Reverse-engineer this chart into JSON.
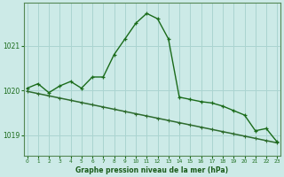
{
  "title": "Graphe pression niveau de la mer (hPa)",
  "background_color": "#cceae7",
  "grid_color": "#aad4d0",
  "line_color_main": "#1a6b1a",
  "line_color_trend": "#2d6b2d",
  "xlabel_color": "#1a5c1a",
  "hours": [
    0,
    1,
    2,
    3,
    4,
    5,
    6,
    7,
    8,
    9,
    10,
    11,
    12,
    13,
    14,
    15,
    16,
    17,
    18,
    19,
    20,
    21,
    22,
    23
  ],
  "pressure_main": [
    1020.05,
    1020.15,
    1019.95,
    1020.1,
    1020.2,
    1020.05,
    1020.3,
    1020.3,
    1020.8,
    1021.15,
    1021.5,
    1021.72,
    1021.6,
    1021.15,
    1019.85,
    1019.8,
    1019.75,
    1019.72,
    1019.65,
    1019.55,
    1019.45,
    1019.1,
    1019.15,
    1018.85
  ],
  "pressure_trend": [
    1019.98,
    1019.93,
    1019.88,
    1019.83,
    1019.78,
    1019.73,
    1019.68,
    1019.63,
    1019.58,
    1019.53,
    1019.48,
    1019.43,
    1019.38,
    1019.33,
    1019.28,
    1019.23,
    1019.18,
    1019.13,
    1019.08,
    1019.03,
    1018.98,
    1018.93,
    1018.88,
    1018.83
  ],
  "ylim": [
    1018.55,
    1021.95
  ],
  "yticks": [
    1019,
    1020,
    1021
  ],
  "xticks": [
    0,
    1,
    2,
    3,
    4,
    5,
    6,
    7,
    8,
    9,
    10,
    11,
    12,
    13,
    14,
    15,
    16,
    17,
    18,
    19,
    20,
    21,
    22,
    23
  ]
}
